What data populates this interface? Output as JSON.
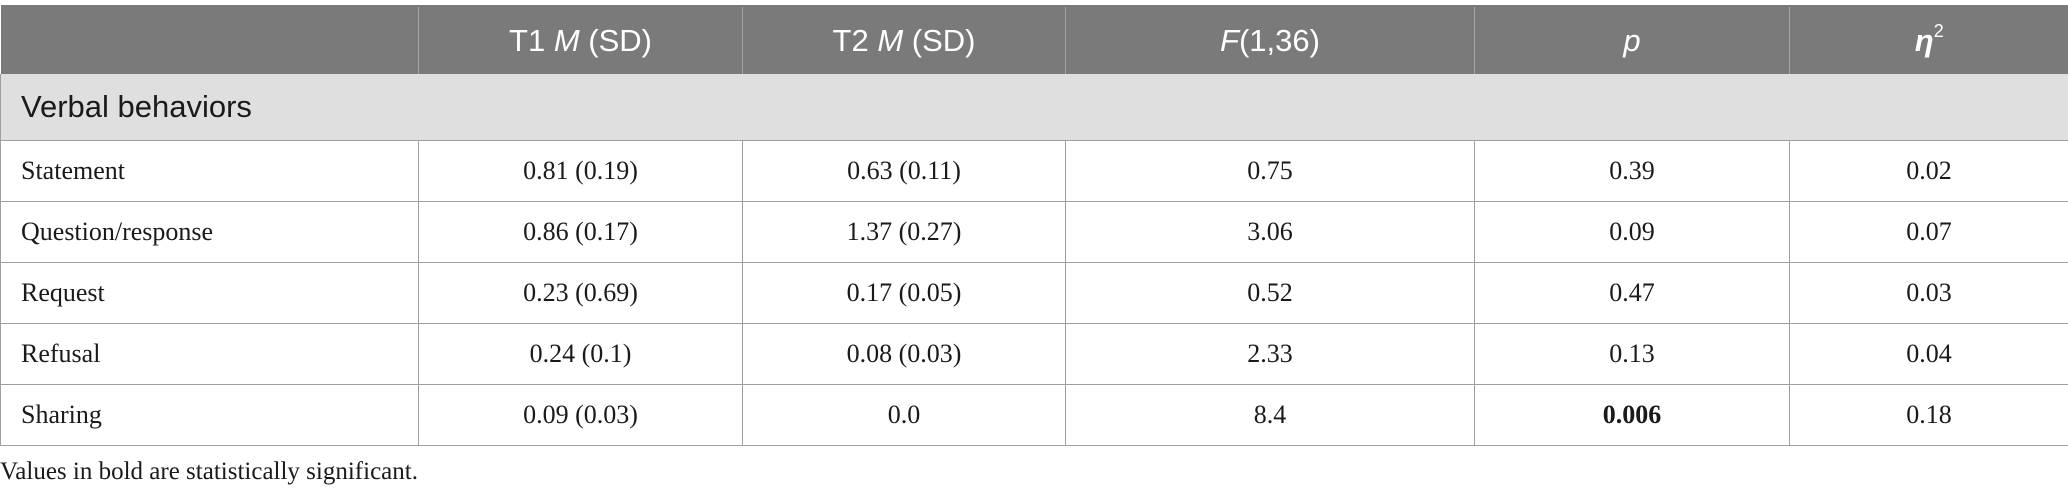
{
  "table": {
    "headers": {
      "col0": "",
      "col1": {
        "pre": "T1 ",
        "ital": "M",
        "post": " (SD)"
      },
      "col2": {
        "pre": "T2 ",
        "ital": "M",
        "post": " (SD)"
      },
      "col3": {
        "ital": "F",
        "post": "(1,36)"
      },
      "col4": {
        "ital": "p"
      },
      "col5": {
        "ital": "η",
        "sup": "2"
      }
    },
    "section_title": "Verbal behaviors",
    "rows": [
      {
        "label": "Statement",
        "t1": "0.81 (0.19)",
        "t2": "0.63 (0.11)",
        "f": "0.75",
        "p": "0.39",
        "eta": "0.02"
      },
      {
        "label": "Question/response",
        "t1": "0.86 (0.17)",
        "t2": "1.37 (0.27)",
        "f": "3.06",
        "p": "0.09",
        "eta": "0.07"
      },
      {
        "label": "Request",
        "t1": "0.23 (0.69)",
        "t2": "0.17 (0.05)",
        "f": "0.52",
        "p": "0.47",
        "eta": "0.03"
      },
      {
        "label": "Refusal",
        "t1": "0.24 (0.1)",
        "t2": "0.08 (0.03)",
        "f": "2.33",
        "p": "0.13",
        "eta": "0.04"
      },
      {
        "label": "Sharing",
        "t1": "0.09 (0.03)",
        "t2": "0.0",
        "f": "8.4",
        "p": "0.006",
        "eta": "0.18"
      }
    ]
  },
  "footnote": "Values in bold are statistically significant."
}
